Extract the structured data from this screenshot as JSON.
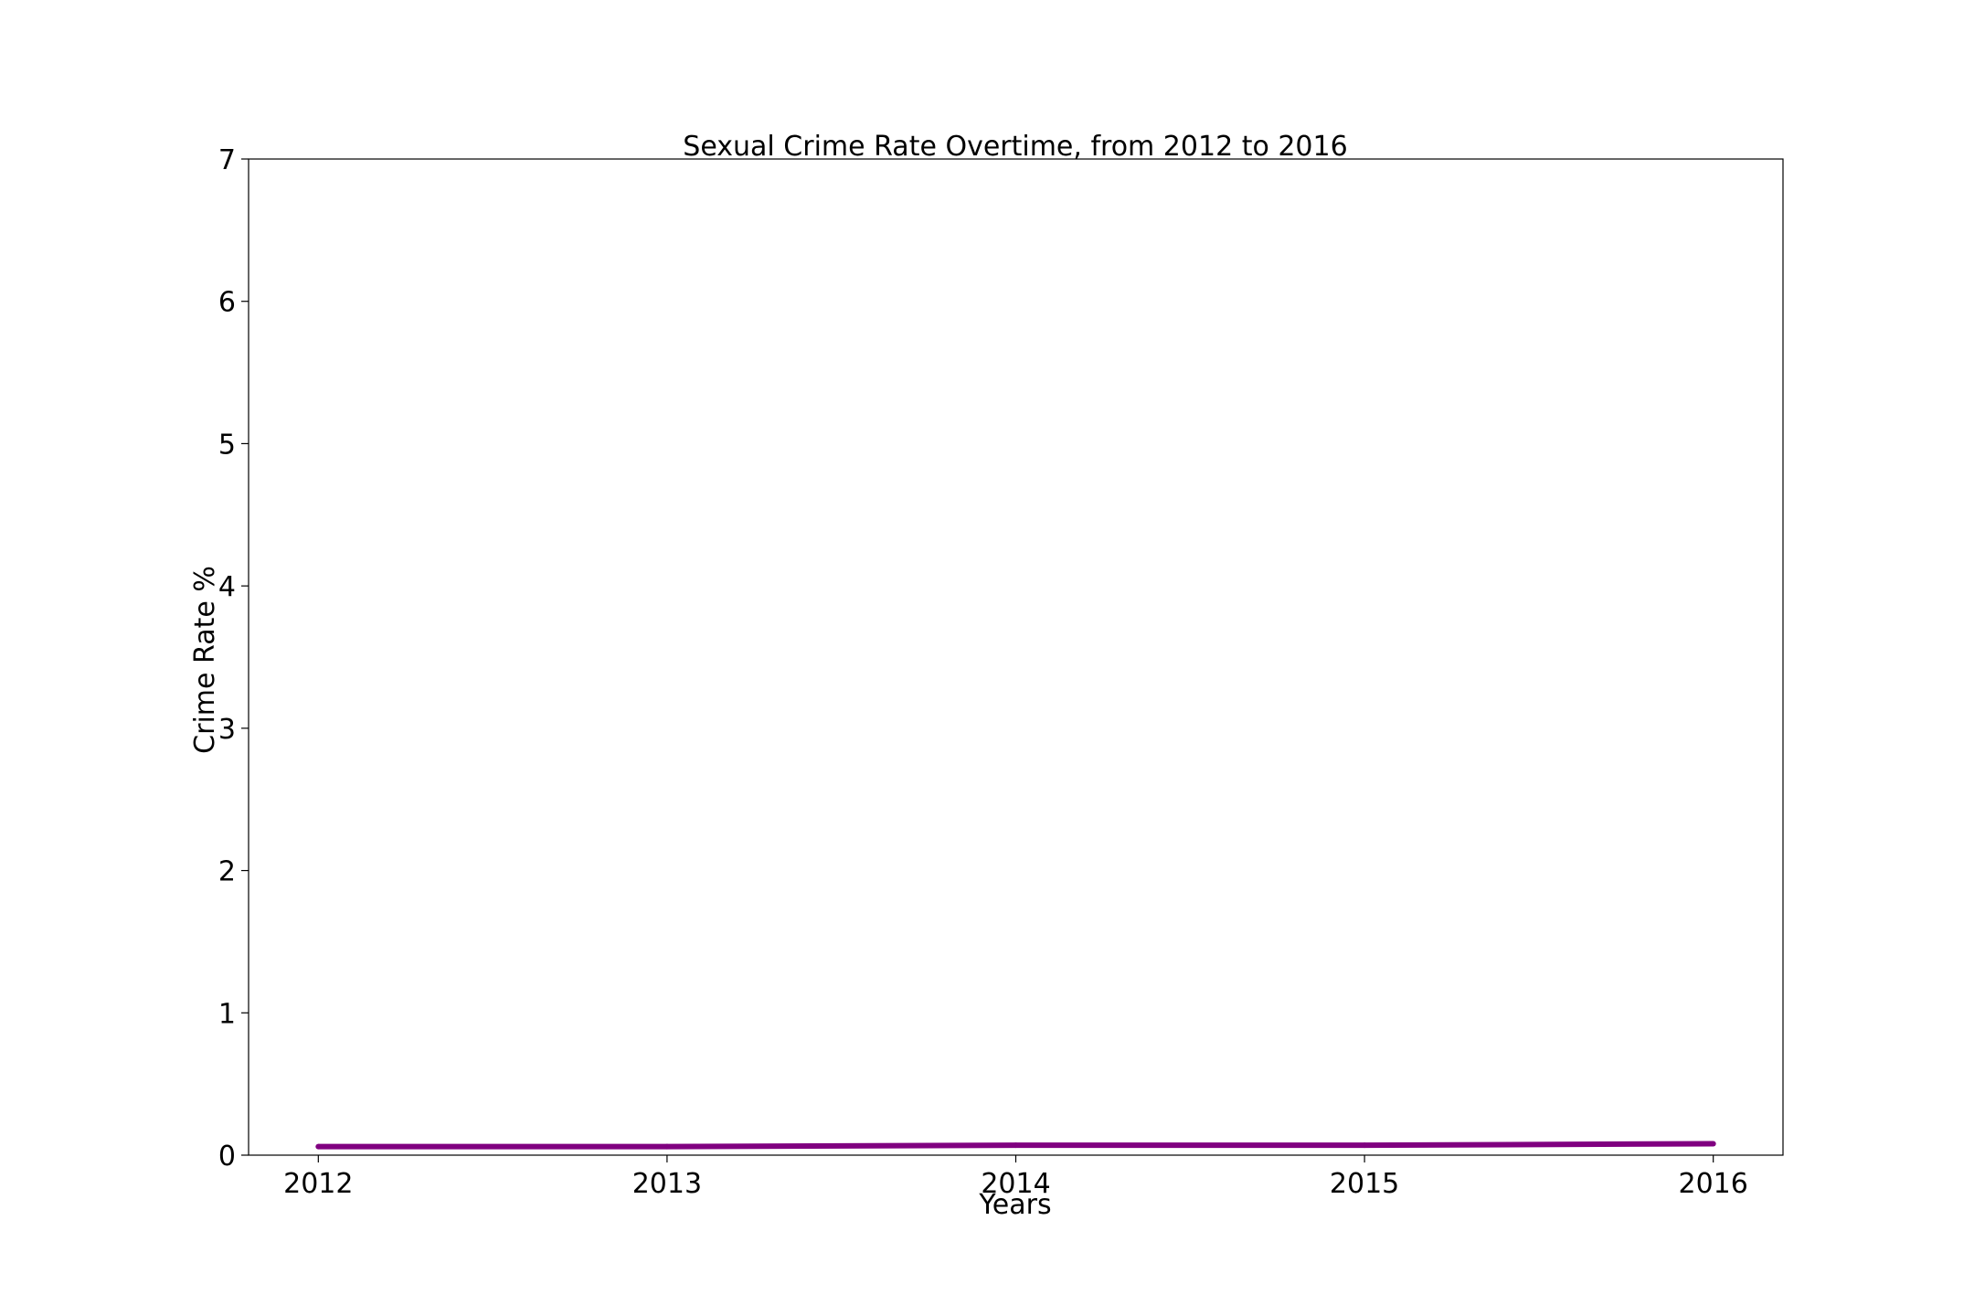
{
  "chart_data": {
    "type": "line",
    "title": "Sexual Crime Rate Overtime, from 2012 to 2016",
    "xlabel": "Years",
    "ylabel": "Crime Rate %",
    "x": [
      2012,
      2013,
      2014,
      2015,
      2016
    ],
    "xticks": [
      "2012",
      "2013",
      "2014",
      "2015",
      "2016"
    ],
    "yticks": [
      "0",
      "1",
      "2",
      "3",
      "4",
      "5",
      "6",
      "7"
    ],
    "xlim": [
      2011.8,
      2016.2
    ],
    "ylim": [
      0,
      7
    ],
    "grid": false,
    "series": [
      {
        "values": [
          0.06,
          0.06,
          0.07,
          0.07,
          0.08
        ],
        "color": "#800080"
      }
    ]
  }
}
